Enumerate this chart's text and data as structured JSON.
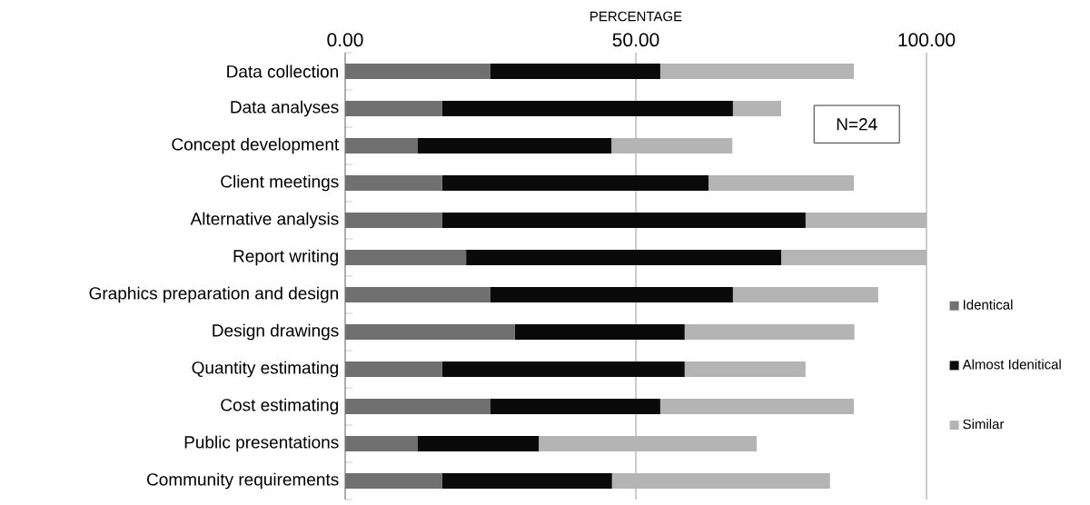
{
  "chart_data": {
    "type": "bar",
    "orientation": "horizontal",
    "stacked": true,
    "xlabel": "PERCENTAGE",
    "categories": [
      "Data collection",
      "Data analyses",
      "Concept development",
      "Client meetings",
      "Alternative analysis",
      "Report writing",
      "Graphics preparation and design",
      "Design drawings",
      "Quantity estimating",
      "Cost estimating",
      "Public presentations",
      "Community requirements"
    ],
    "series": [
      {
        "name": "Identical",
        "color": "#707070",
        "values": [
          25,
          16.7,
          12.5,
          16.7,
          16.7,
          20.8,
          25,
          29.2,
          16.7,
          25,
          12.5,
          16.7
        ]
      },
      {
        "name": "Almost Idenitical",
        "color": "#0a0a0a",
        "values": [
          29.2,
          50,
          33.3,
          45.8,
          62.5,
          54.2,
          41.7,
          29.2,
          41.7,
          29.2,
          20.8,
          29.2
        ]
      },
      {
        "name": "Similar",
        "color": "#b4b4b4",
        "values": [
          33.3,
          8.3,
          20.8,
          25,
          20.8,
          25,
          25,
          29.2,
          20.8,
          33.3,
          37.5,
          37.5
        ]
      }
    ],
    "xlim": [
      0,
      100
    ],
    "xticks": [
      {
        "value": 0,
        "label": "0.00"
      },
      {
        "value": 50,
        "label": "50.00"
      },
      {
        "value": 100,
        "label": "100.00"
      }
    ],
    "grid": "x",
    "legend": "right",
    "annotations": [
      "N=24"
    ]
  }
}
